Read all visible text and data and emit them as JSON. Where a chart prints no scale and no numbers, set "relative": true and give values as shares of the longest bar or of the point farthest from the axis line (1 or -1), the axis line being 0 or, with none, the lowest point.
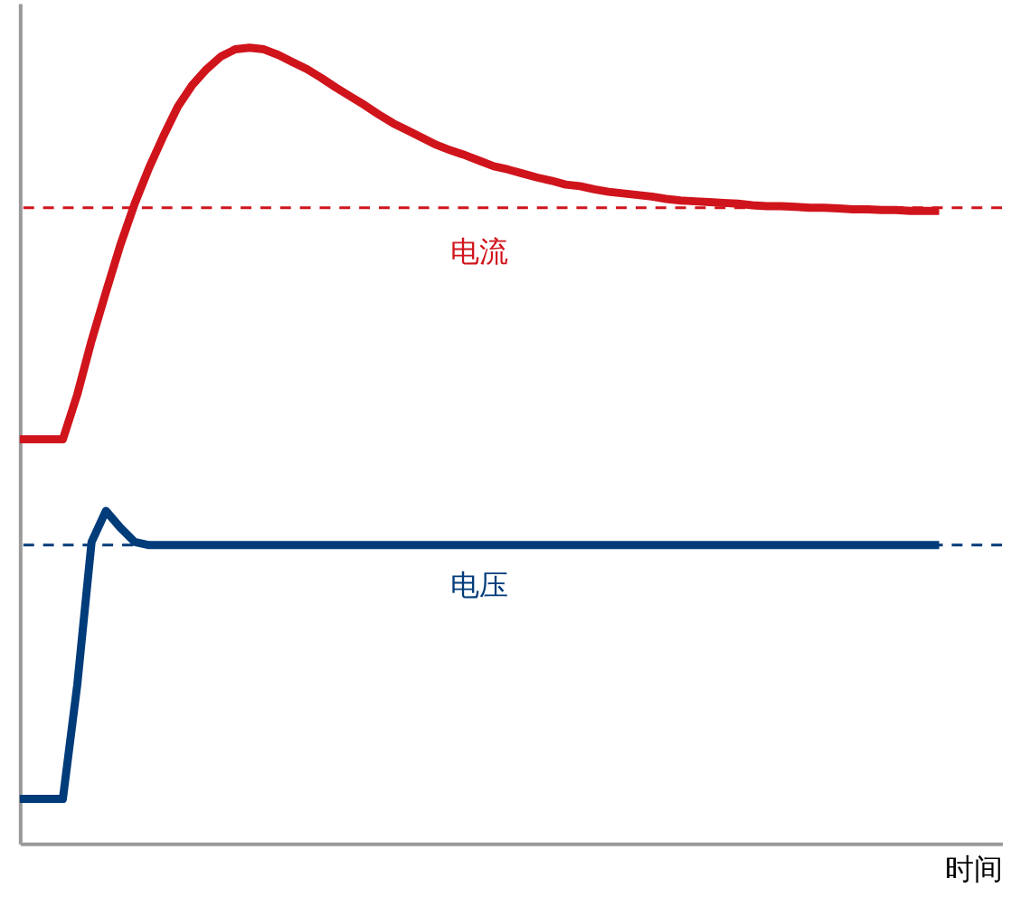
{
  "chart_data": {
    "type": "line",
    "relative": true,
    "xlabel": "时间",
    "grid": false,
    "legend": false,
    "line_style": "solid",
    "marker": "none",
    "categories": [
      null,
      null,
      null,
      null,
      null,
      null,
      null,
      null,
      null,
      null,
      null,
      null,
      null,
      null,
      null,
      null,
      null,
      null,
      null,
      null,
      null,
      null,
      null,
      null,
      null,
      null,
      null,
      null,
      null,
      null,
      null,
      null,
      null,
      null,
      null,
      null,
      null,
      null,
      null,
      null,
      null,
      null,
      null,
      null,
      null,
      null,
      null,
      null,
      null,
      null,
      null,
      null,
      null,
      null,
      null,
      null,
      null,
      null,
      null,
      null,
      null,
      null,
      null,
      null,
      null
    ],
    "series": [
      {
        "name": "电流",
        "color": "#d0141c",
        "values": [
          0.508,
          0.508,
          0.508,
          0.508,
          0.564,
          0.632,
          0.693,
          0.752,
          0.804,
          0.849,
          0.889,
          0.926,
          0.953,
          0.973,
          0.989,
          0.998,
          1,
          0.998,
          0.991,
          0.982,
          0.973,
          0.962,
          0.95,
          0.939,
          0.928,
          0.916,
          0.905,
          0.896,
          0.887,
          0.878,
          0.871,
          0.865,
          0.858,
          0.851,
          0.847,
          0.842,
          0.837,
          0.833,
          0.828,
          0.826,
          0.822,
          0.819,
          0.817,
          0.815,
          0.813,
          0.81,
          0.808,
          0.807,
          0.806,
          0.805,
          0.804,
          0.802,
          0.801,
          0.801,
          0.8,
          0.799,
          0.799,
          0.798,
          0.797,
          0.797,
          0.796,
          0.796,
          0.795,
          0.795,
          0.795
        ]
      },
      {
        "name": "电压",
        "color": "#003b7a",
        "values": [
          0.056,
          0.056,
          0.056,
          0.056,
          0.199,
          0.379,
          0.418,
          0.397,
          0.379,
          0.375,
          0.375,
          0.375,
          0.375,
          0.375,
          0.375,
          0.375,
          0.375,
          0.375,
          0.375,
          0.375,
          0.375,
          0.375,
          0.375,
          0.375,
          0.375,
          0.375,
          0.375,
          0.375,
          0.375,
          0.375,
          0.375,
          0.375,
          0.375,
          0.375,
          0.375,
          0.375,
          0.375,
          0.375,
          0.375,
          0.375,
          0.375,
          0.375,
          0.375,
          0.375,
          0.375,
          0.375,
          0.375,
          0.375,
          0.375,
          0.375,
          0.375,
          0.375,
          0.375,
          0.375,
          0.375,
          0.375,
          0.375,
          0.375,
          0.375,
          0.375,
          0.375,
          0.375,
          0.375,
          0.375,
          0.375
        ]
      }
    ],
    "ref_lines": [
      {
        "axis": "y",
        "value": 0.799,
        "color": "#d0141c",
        "line_style": "dashed"
      },
      {
        "axis": "y",
        "value": 0.375,
        "color": "#003b7a",
        "line_style": "dashed"
      }
    ]
  }
}
